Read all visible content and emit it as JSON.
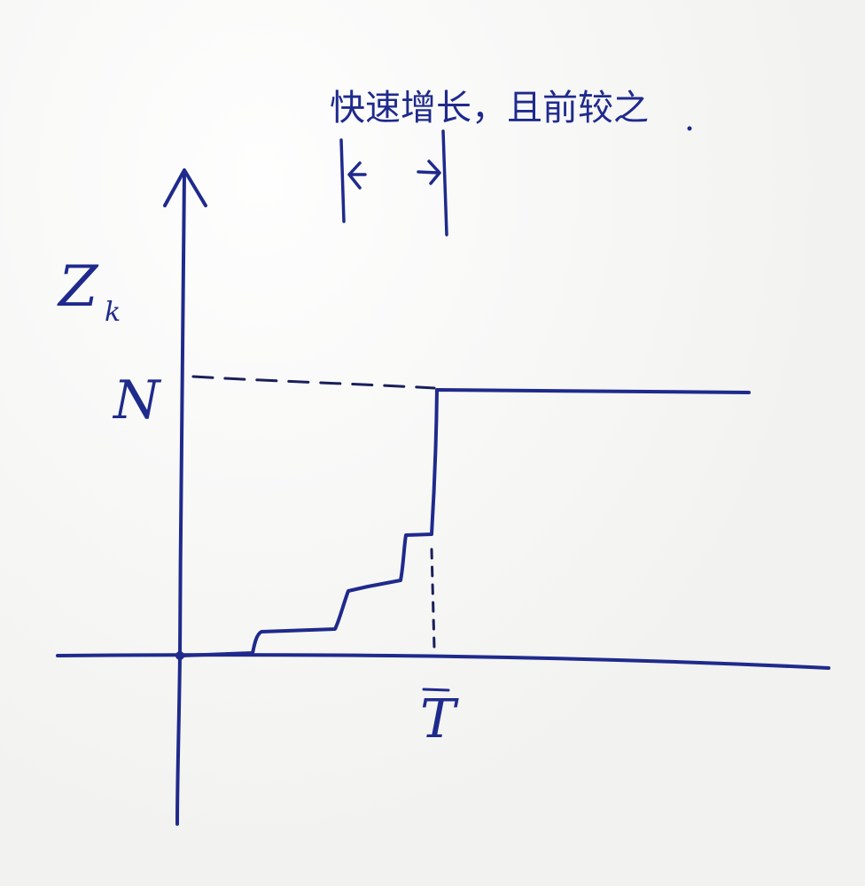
{
  "colors": {
    "ink": "#1f2a8c",
    "paper": "#f4f4f2",
    "dash": "#1a1f5a"
  },
  "labels": {
    "y_axis": "Z",
    "y_axis_subscript": "k",
    "level_N": "N",
    "time_T": "T",
    "annotation": "快速增长，且前较之"
  },
  "description_marks": {
    "bracket_arrows": [
      "left-arrow",
      "right-arrow"
    ]
  }
}
